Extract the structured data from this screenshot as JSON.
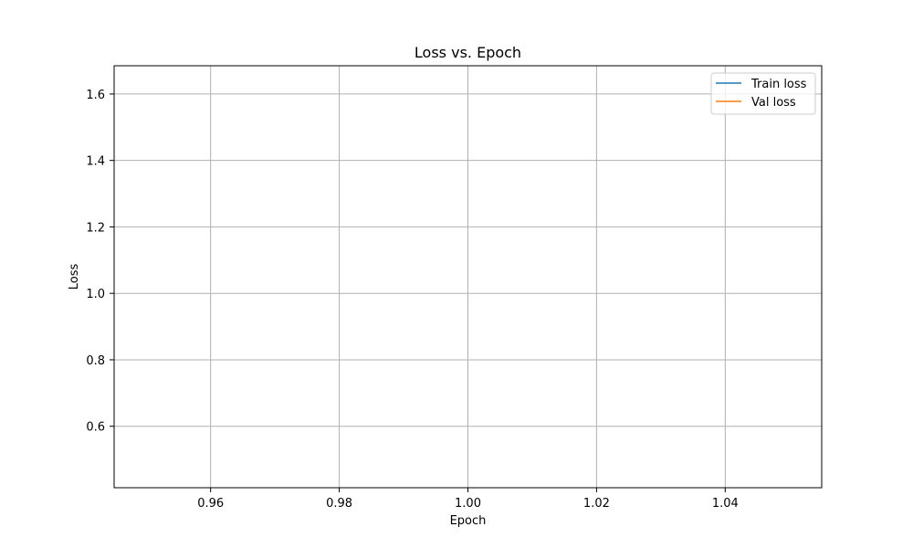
{
  "chart_data": {
    "type": "line",
    "title": "Loss vs. Epoch",
    "xlabel": "Epoch",
    "ylabel": "Loss",
    "xlim": [
      0.945,
      1.055
    ],
    "ylim": [
      0.415,
      1.685
    ],
    "xticks": [
      0.96,
      0.98,
      1.0,
      1.02,
      1.04
    ],
    "xtick_labels": [
      "0.96",
      "0.98",
      "1.00",
      "1.02",
      "1.04"
    ],
    "yticks": [
      0.6,
      0.8,
      1.0,
      1.2,
      1.4,
      1.6
    ],
    "ytick_labels": [
      "0.6",
      "0.8",
      "1.0",
      "1.2",
      "1.4",
      "1.6"
    ],
    "grid": true,
    "legend_position": "top-right",
    "series": [
      {
        "name": "Train loss",
        "color": "#1f77b4",
        "x": [],
        "y": []
      },
      {
        "name": "Val loss",
        "color": "#ff7f0e",
        "x": [],
        "y": []
      }
    ]
  }
}
